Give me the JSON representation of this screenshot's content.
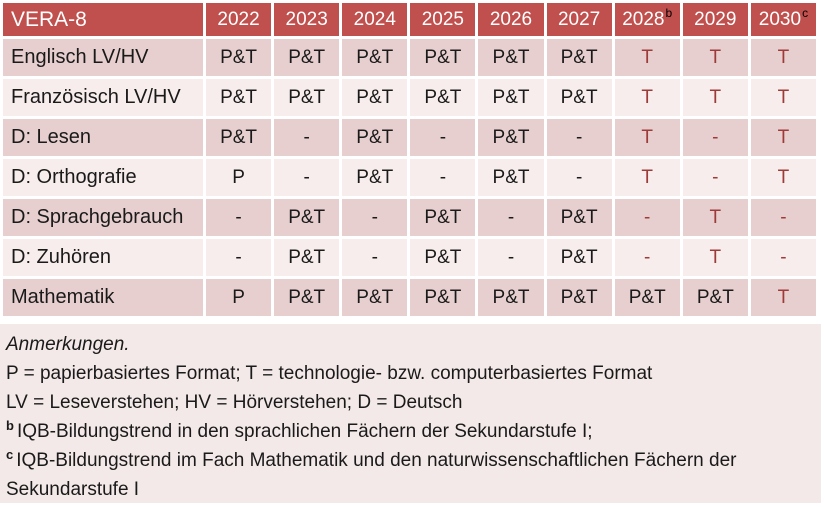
{
  "colors": {
    "header_bg": "#C0504D",
    "header_text": "#FFFFFF",
    "row_dark": "#E6CFCE",
    "row_light": "#F6EDEC",
    "notes_bg": "#F3E9E8",
    "accent_red_text": "#9E3B38",
    "cell_text": "#1A1A1A",
    "superscript_color": "#000000"
  },
  "table": {
    "header": {
      "label": "VERA-8",
      "years": [
        {
          "text": "2022",
          "sup": ""
        },
        {
          "text": "2023",
          "sup": ""
        },
        {
          "text": "2024",
          "sup": ""
        },
        {
          "text": "2025",
          "sup": ""
        },
        {
          "text": "2026",
          "sup": ""
        },
        {
          "text": "2027",
          "sup": ""
        },
        {
          "text": "2028",
          "sup": "b"
        },
        {
          "text": "2029",
          "sup": ""
        },
        {
          "text": "2030",
          "sup": "c"
        }
      ]
    },
    "rows": [
      {
        "label": "Englisch LV/HV",
        "cells": [
          {
            "v": "P&T",
            "red": false
          },
          {
            "v": "P&T",
            "red": false
          },
          {
            "v": "P&T",
            "red": false
          },
          {
            "v": "P&T",
            "red": false
          },
          {
            "v": "P&T",
            "red": false
          },
          {
            "v": "P&T",
            "red": false
          },
          {
            "v": "T",
            "red": true
          },
          {
            "v": "T",
            "red": true
          },
          {
            "v": "T",
            "red": true
          }
        ]
      },
      {
        "label": "Französisch LV/HV",
        "cells": [
          {
            "v": "P&T",
            "red": false
          },
          {
            "v": "P&T",
            "red": false
          },
          {
            "v": "P&T",
            "red": false
          },
          {
            "v": "P&T",
            "red": false
          },
          {
            "v": "P&T",
            "red": false
          },
          {
            "v": "P&T",
            "red": false
          },
          {
            "v": "T",
            "red": true
          },
          {
            "v": "T",
            "red": true
          },
          {
            "v": "T",
            "red": true
          }
        ]
      },
      {
        "label": "D: Lesen",
        "cells": [
          {
            "v": "P&T",
            "red": false
          },
          {
            "v": "-",
            "red": false
          },
          {
            "v": "P&T",
            "red": false
          },
          {
            "v": "-",
            "red": false
          },
          {
            "v": "P&T",
            "red": false
          },
          {
            "v": "-",
            "red": false
          },
          {
            "v": "T",
            "red": true
          },
          {
            "v": "-",
            "red": true
          },
          {
            "v": "T",
            "red": true
          }
        ]
      },
      {
        "label": "D: Orthografie",
        "cells": [
          {
            "v": "P",
            "red": false
          },
          {
            "v": "-",
            "red": false
          },
          {
            "v": "P&T",
            "red": false
          },
          {
            "v": "-",
            "red": false
          },
          {
            "v": "P&T",
            "red": false
          },
          {
            "v": "-",
            "red": false
          },
          {
            "v": "T",
            "red": true
          },
          {
            "v": "-",
            "red": true
          },
          {
            "v": "T",
            "red": true
          }
        ]
      },
      {
        "label": "D: Sprachgebrauch",
        "cells": [
          {
            "v": "-",
            "red": false
          },
          {
            "v": "P&T",
            "red": false
          },
          {
            "v": "-",
            "red": false
          },
          {
            "v": "P&T",
            "red": false
          },
          {
            "v": "-",
            "red": false
          },
          {
            "v": "P&T",
            "red": false
          },
          {
            "v": "-",
            "red": true
          },
          {
            "v": "T",
            "red": true
          },
          {
            "v": "-",
            "red": true
          }
        ]
      },
      {
        "label": "D: Zuhören",
        "cells": [
          {
            "v": "-",
            "red": false
          },
          {
            "v": "P&T",
            "red": false
          },
          {
            "v": "-",
            "red": false
          },
          {
            "v": "P&T",
            "red": false
          },
          {
            "v": "-",
            "red": false
          },
          {
            "v": "P&T",
            "red": false
          },
          {
            "v": "-",
            "red": true
          },
          {
            "v": "T",
            "red": true
          },
          {
            "v": "-",
            "red": true
          }
        ]
      },
      {
        "label": "Mathematik",
        "cells": [
          {
            "v": "P",
            "red": false
          },
          {
            "v": "P&T",
            "red": false
          },
          {
            "v": "P&T",
            "red": false
          },
          {
            "v": "P&T",
            "red": false
          },
          {
            "v": "P&T",
            "red": false
          },
          {
            "v": "P&T",
            "red": false
          },
          {
            "v": "P&T",
            "red": false
          },
          {
            "v": "P&T",
            "red": false
          },
          {
            "v": "T",
            "red": true
          }
        ]
      }
    ]
  },
  "notes": {
    "lines": [
      {
        "sup": "",
        "italic": true,
        "text": "Anmerkungen."
      },
      {
        "sup": "",
        "italic": false,
        "text": "P = papierbasiertes Format; T = technologie- bzw. computerbasiertes Format"
      },
      {
        "sup": "",
        "italic": false,
        "text": "LV = Leseverstehen; HV = Hörverstehen; D = Deutsch"
      },
      {
        "sup": "b",
        "italic": false,
        "text": "IQB-Bildungstrend in den sprachlichen Fächern der Sekundarstufe I;"
      },
      {
        "sup": "c",
        "italic": false,
        "text": "IQB-Bildungstrend im Fach Mathematik und den naturwissenschaftlichen Fächern der Sekundarstufe I"
      }
    ]
  }
}
